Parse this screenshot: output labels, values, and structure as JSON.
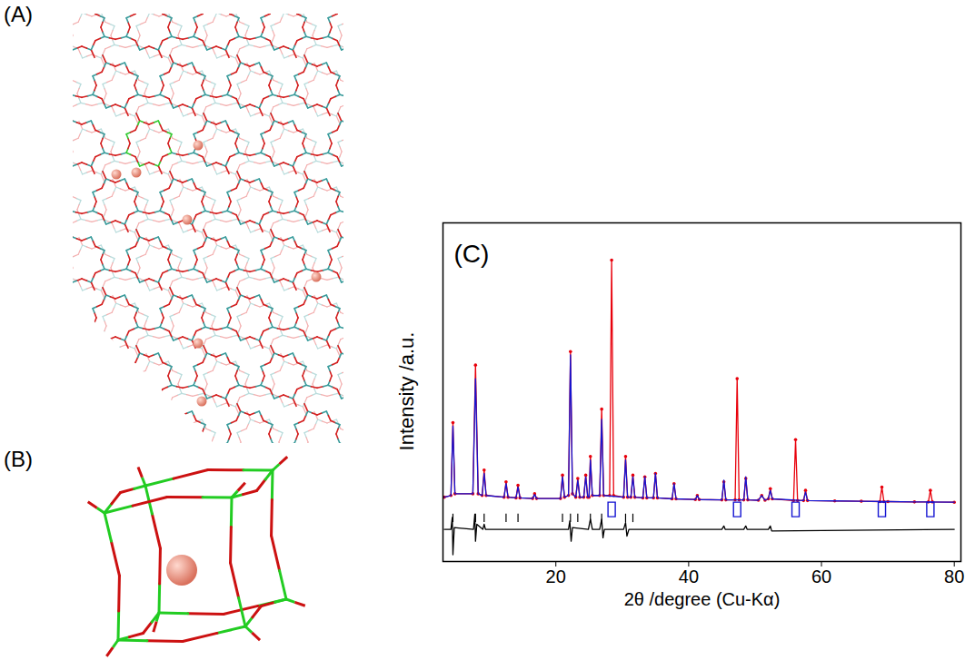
{
  "figure": {
    "panels": [
      {
        "label": "(A)"
      },
      {
        "label": "(B)"
      }
    ]
  },
  "chart_data": {
    "type": "line",
    "panel_label": "(C)",
    "x_label": "2θ /degree (Cu-Kα)",
    "y_label": "Intensity /a.u.",
    "xlim": [
      3,
      81
    ],
    "ylim": [
      0,
      100
    ],
    "xticks": [
      20,
      40,
      60,
      80
    ],
    "yticks": [],
    "tick_labels": "x",
    "grid": false,
    "series": [
      {
        "type": "line",
        "marker": "circle",
        "color": "#e8000b",
        "x": [
          3.2,
          4.2,
          4.5,
          4.8,
          7.5,
          7.9,
          8.3,
          8.9,
          9.2,
          9.5,
          12.2,
          12.5,
          12.8,
          14.0,
          14.3,
          14.6,
          16.5,
          16.8,
          17.1,
          20.7,
          21.0,
          21.3,
          21.9,
          22.2,
          22.5,
          23.0,
          23.3,
          23.6,
          24.2,
          24.5,
          24.8,
          25.0,
          25.2,
          25.5,
          26.6,
          26.9,
          27.2,
          28.1,
          28.4,
          28.7,
          30.2,
          30.5,
          30.8,
          31.3,
          31.6,
          31.9,
          33.1,
          33.4,
          33.7,
          34.7,
          35.0,
          35.3,
          37.5,
          37.8,
          38.1,
          41.0,
          41.3,
          41.6,
          45.0,
          45.3,
          45.6,
          47.0,
          47.3,
          47.6,
          48.3,
          48.6,
          48.9,
          50.5,
          51.0,
          51.5,
          52.0,
          52.3,
          52.6,
          55.8,
          56.1,
          56.4,
          57.3,
          57.6,
          57.9,
          62,
          66,
          68.8,
          69.1,
          69.4,
          70,
          74,
          76.1,
          76.4,
          76.7,
          80
        ],
        "values": [
          19,
          19.5,
          41,
          20,
          20,
          58,
          20,
          19.5,
          27,
          19.5,
          19,
          23.5,
          19,
          18.8,
          22.5,
          18.8,
          18.6,
          20,
          18.6,
          18.6,
          25.5,
          19,
          19.5,
          62,
          20,
          19,
          24.5,
          19,
          19,
          25.5,
          19,
          19,
          31,
          19.5,
          19.5,
          45,
          19.5,
          19.5,
          89,
          19.5,
          19,
          31,
          19,
          19,
          25.5,
          19,
          18.8,
          25,
          18.8,
          18.8,
          26,
          18.8,
          18.5,
          23,
          18.5,
          18.3,
          19.5,
          18.3,
          18.2,
          23.5,
          18.2,
          18.2,
          54,
          18.2,
          18.2,
          24.5,
          18.2,
          18.1,
          19.5,
          18.1,
          18.5,
          21.5,
          18.5,
          18,
          36,
          18,
          18,
          21,
          18,
          17.9,
          17.8,
          17.7,
          22,
          17.7,
          17.7,
          17.6,
          17.6,
          21,
          17.6,
          17.5
        ]
      },
      {
        "type": "line",
        "color": "#1414d2",
        "x": [
          3.2,
          4.2,
          4.5,
          4.8,
          7.5,
          7.9,
          8.3,
          8.9,
          9.2,
          9.5,
          12.2,
          12.5,
          12.8,
          14.0,
          14.3,
          14.6,
          16.5,
          16.8,
          17.1,
          20.7,
          21.0,
          21.3,
          21.9,
          22.2,
          22.5,
          23.0,
          23.3,
          23.6,
          24.2,
          24.5,
          24.8,
          25.0,
          25.2,
          25.5,
          26.6,
          26.9,
          27.2,
          30.2,
          30.5,
          30.8,
          31.3,
          31.6,
          31.9,
          33.1,
          33.4,
          33.7,
          34.7,
          35.0,
          35.3,
          37.5,
          37.8,
          38.1,
          41.0,
          41.3,
          41.6,
          45.0,
          45.3,
          45.6,
          48.3,
          48.6,
          48.9,
          50.5,
          51.0,
          51.5,
          52.0,
          52.3,
          52.6,
          57.3,
          57.6,
          57.9,
          62,
          66,
          70,
          74,
          80
        ],
        "values": [
          19,
          19.5,
          40,
          20,
          20,
          54,
          20,
          19.5,
          26,
          19.5,
          19,
          23,
          19,
          18.8,
          22,
          18.8,
          18.6,
          19.8,
          18.6,
          18.6,
          25,
          19,
          19.5,
          61,
          20,
          19,
          24,
          19,
          19,
          25,
          19,
          19,
          30,
          19.5,
          19.5,
          42,
          19.5,
          19,
          30,
          19,
          19,
          25,
          19,
          18.8,
          25,
          18.8,
          18.8,
          26,
          18.8,
          18.5,
          23,
          18.5,
          18.3,
          19.5,
          18.3,
          18.2,
          24,
          18.2,
          18.2,
          25,
          18.2,
          18.1,
          19.5,
          18.1,
          18.5,
          21,
          18.5,
          18,
          20.5,
          18,
          17.9,
          17.8,
          17.7,
          17.6,
          17.5
        ]
      },
      {
        "type": "line",
        "color": "#000000",
        "x": [
          3.2,
          4.2,
          4.4,
          4.5,
          4.7,
          7.6,
          7.8,
          7.9,
          8.1,
          9.0,
          9.2,
          9.4,
          21.9,
          22.1,
          22.3,
          22.5,
          24.9,
          25.2,
          25.5,
          26.6,
          26.9,
          27.1,
          27.3,
          30.2,
          30.5,
          30.7,
          31.0,
          45.0,
          45.3,
          45.5,
          48.3,
          48.6,
          48.8,
          52.0,
          52.3,
          52.5,
          80
        ],
        "values": [
          9.5,
          9.5,
          13,
          2,
          10,
          9.5,
          14,
          6,
          11,
          9.5,
          11,
          9.5,
          9.5,
          12,
          6,
          10,
          9.5,
          12.5,
          9.5,
          9.5,
          12.5,
          7,
          9.5,
          9.5,
          11.5,
          7.5,
          9.5,
          9.5,
          10.5,
          9.5,
          9.5,
          10.5,
          9.5,
          9.5,
          10.5,
          9,
          9.5
        ]
      }
    ],
    "reflection_markers": {
      "marker": "rectangle",
      "color": "#1414d2",
      "x": [
        28.4,
        47.3,
        56.1,
        69.1,
        76.4
      ],
      "y": 17
    },
    "reflection_ticks": {
      "color": "#000000",
      "x": [
        4.5,
        7.9,
        9.2,
        12.5,
        14.3,
        21.0,
        22.2,
        23.3,
        25.2,
        26.9,
        30.5,
        31.6
      ],
      "y1": 11.5,
      "y2": 14
    }
  }
}
